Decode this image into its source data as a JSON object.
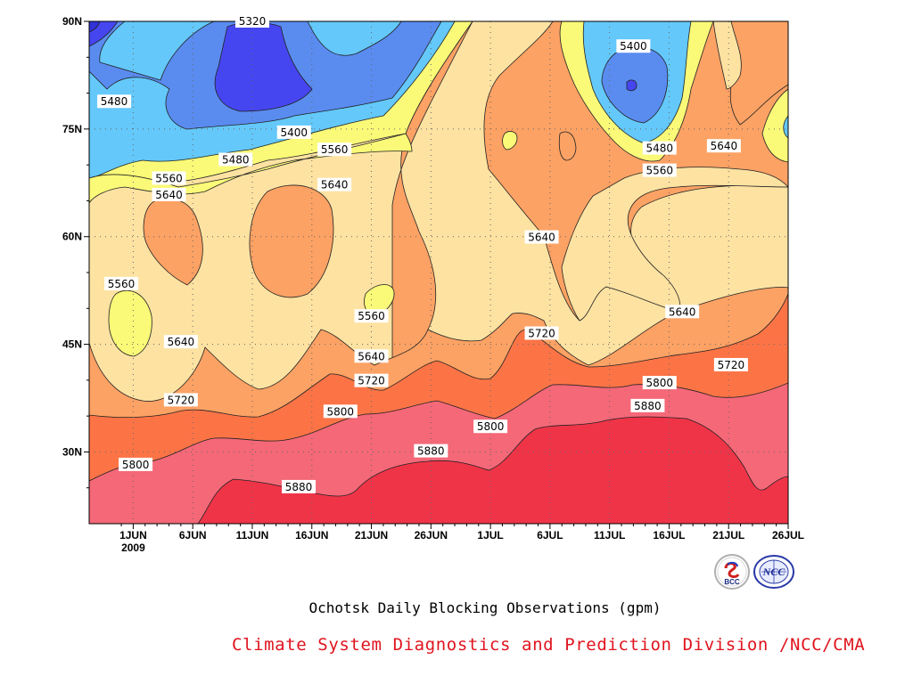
{
  "chart_data": {
    "type": "contour",
    "title": "Ochotsk Daily Blocking Observations (gpm)",
    "credit": "Climate System Diagnostics and Prediction Division /NCC/CMA",
    "x_ticks": [
      {
        "label": "1JUN",
        "sub": "2009",
        "day": 1
      },
      {
        "label": "6JUN",
        "sub": "",
        "day": 6
      },
      {
        "label": "11JUN",
        "sub": "",
        "day": 11
      },
      {
        "label": "16JUN",
        "sub": "",
        "day": 16
      },
      {
        "label": "21JUN",
        "sub": "",
        "day": 21
      },
      {
        "label": "26JUN",
        "sub": "",
        "day": 26
      },
      {
        "label": "1JUL",
        "sub": "",
        "day": 31
      },
      {
        "label": "6JUL",
        "sub": "",
        "day": 36
      },
      {
        "label": "11JUL",
        "sub": "",
        "day": 41
      },
      {
        "label": "16JUL",
        "sub": "",
        "day": 46
      },
      {
        "label": "21JUL",
        "sub": "",
        "day": 51
      },
      {
        "label": "26JUL",
        "sub": "",
        "day": 56
      }
    ],
    "y_ticks": [
      {
        "label": "30N",
        "lat": 30
      },
      {
        "label": "45N",
        "lat": 45
      },
      {
        "label": "60N",
        "lat": 60
      },
      {
        "label": "75N",
        "lat": 75
      },
      {
        "label": "90N",
        "lat": 90
      }
    ],
    "xlim_days": [
      -2.7,
      56
    ],
    "ylim_lat": [
      20,
      90
    ],
    "contour_levels": [
      5320,
      5400,
      5480,
      5560,
      5640,
      5720,
      5800,
      5880
    ],
    "fill_colors": {
      "lt5320": "#3232d8",
      "5320": "#4646f0",
      "5400": "#5a8cf0",
      "5480": "#64c8fa",
      "5560": "#fafa78",
      "5640": "#fde2a2",
      "5720": "#fca264",
      "5800": "#fc7446",
      "5880": "#f46878",
      "gt5880": "#f03448"
    },
    "contour_labels": [
      {
        "text": "5320",
        "day": 11,
        "lat": 90
      },
      {
        "text": "5480",
        "day": -0.6,
        "lat": 78.8
      },
      {
        "text": "5400",
        "day": 14.5,
        "lat": 74.5
      },
      {
        "text": "5480",
        "day": 9.6,
        "lat": 70.7
      },
      {
        "text": "5560",
        "day": 17.9,
        "lat": 72.1
      },
      {
        "text": "5560",
        "day": 4,
        "lat": 68.1
      },
      {
        "text": "5640",
        "day": 4,
        "lat": 65.8
      },
      {
        "text": "5640",
        "day": 17.9,
        "lat": 67.2
      },
      {
        "text": "5560",
        "day": 0,
        "lat": 53.4
      },
      {
        "text": "5560",
        "day": 21,
        "lat": 48.9
      },
      {
        "text": "5640",
        "day": 5,
        "lat": 45.3
      },
      {
        "text": "5640",
        "day": 21,
        "lat": 43.3
      },
      {
        "text": "5720",
        "day": 5,
        "lat": 37.2
      },
      {
        "text": "5720",
        "day": 21,
        "lat": 39.9
      },
      {
        "text": "5800",
        "day": 18.4,
        "lat": 35.6
      },
      {
        "text": "5800",
        "day": 31,
        "lat": 33.5
      },
      {
        "text": "5800",
        "day": 1.2,
        "lat": 28.2
      },
      {
        "text": "5880",
        "day": 14.9,
        "lat": 25.1
      },
      {
        "text": "5880",
        "day": 26,
        "lat": 30.1
      },
      {
        "text": "5640",
        "day": 35.3,
        "lat": 59.9
      },
      {
        "text": "5720",
        "day": 35.3,
        "lat": 46.5
      },
      {
        "text": "5400",
        "day": 43,
        "lat": 86.5
      },
      {
        "text": "5480",
        "day": 45.2,
        "lat": 72.3
      },
      {
        "text": "5560",
        "day": 45.2,
        "lat": 69.2
      },
      {
        "text": "5640",
        "day": 50.6,
        "lat": 72.6
      },
      {
        "text": "5640",
        "day": 47.1,
        "lat": 49.5
      },
      {
        "text": "5800",
        "day": 45.2,
        "lat": 39.6
      },
      {
        "text": "5720",
        "day": 51.2,
        "lat": 42.1
      },
      {
        "text": "5880",
        "day": 44.2,
        "lat": 36.4
      }
    ]
  }
}
